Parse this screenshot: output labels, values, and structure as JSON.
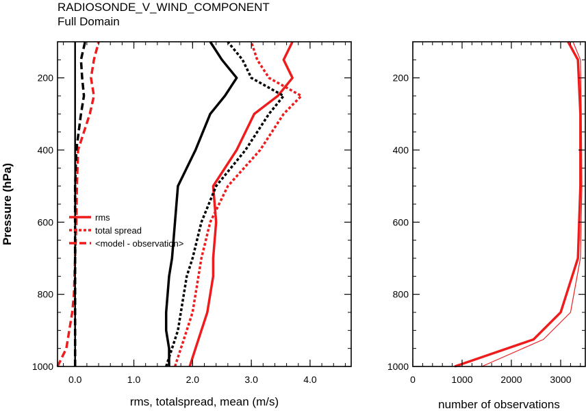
{
  "header": {
    "title": "RADIOSONDE_V_WIND_COMPONENT",
    "subtitle": "Full Domain"
  },
  "colors": {
    "red": "#ee1c1c",
    "black": "#000000"
  },
  "chart_data": [
    {
      "type": "line",
      "xlabel": "rms, totalspread, mean (m/s)",
      "ylabel": "Pressure (hPa)",
      "xlim": [
        -0.3,
        4.7
      ],
      "ylim": [
        1000,
        100
      ],
      "y_reversed": true,
      "xticks": [
        0.0,
        1.0,
        2.0,
        3.0,
        4.0
      ],
      "xtick_labels": [
        "0.0",
        "1.0",
        "2.0",
        "3.0",
        "4.0"
      ],
      "yticks": [
        200,
        400,
        600,
        800,
        1000
      ],
      "ytick_labels": [
        "200",
        "400",
        "600",
        "800",
        "1000"
      ],
      "legend": {
        "placement": "center-left",
        "entries": [
          {
            "label": "rms",
            "style": "solid",
            "color": "#ee1c1c"
          },
          {
            "label": "total spread",
            "style": "dotted",
            "color": "#ee1c1c"
          },
          {
            "label": "<model - observation>",
            "style": "dashed",
            "color": "#ee1c1c"
          }
        ]
      },
      "series": [
        {
          "color": "#ee1c1c",
          "style": "solid",
          "width": 3.5,
          "points": [
            [
              1.95,
              1000
            ],
            [
              2.05,
              950
            ],
            [
              2.15,
              900
            ],
            [
              2.25,
              850
            ],
            [
              2.35,
              750
            ],
            [
              2.35,
              700
            ],
            [
              2.4,
              600
            ],
            [
              2.35,
              500
            ],
            [
              2.75,
              400
            ],
            [
              3.05,
              300
            ],
            [
              3.45,
              250
            ],
            [
              3.7,
              200
            ],
            [
              3.55,
              150
            ],
            [
              3.7,
              100
            ]
          ]
        },
        {
          "color": "#ee1c1c",
          "style": "dotted",
          "width": 3.5,
          "points": [
            [
              1.7,
              1000
            ],
            [
              1.8,
              950
            ],
            [
              1.9,
              900
            ],
            [
              2.0,
              850
            ],
            [
              2.1,
              750
            ],
            [
              2.15,
              700
            ],
            [
              2.3,
              600
            ],
            [
              2.6,
              500
            ],
            [
              3.15,
              400
            ],
            [
              3.55,
              300
            ],
            [
              3.85,
              250
            ],
            [
              3.3,
              200
            ],
            [
              3.1,
              150
            ],
            [
              3.0,
              100
            ]
          ]
        },
        {
          "color": "#ee1c1c",
          "style": "dashed",
          "width": 3.5,
          "points": [
            [
              -0.3,
              1000
            ],
            [
              -0.15,
              950
            ],
            [
              -0.1,
              900
            ],
            [
              -0.05,
              850
            ],
            [
              -0.02,
              800
            ],
            [
              0.0,
              700
            ],
            [
              0.02,
              600
            ],
            [
              0.03,
              500
            ],
            [
              0.05,
              400
            ],
            [
              0.25,
              300
            ],
            [
              0.32,
              250
            ],
            [
              0.27,
              200
            ],
            [
              0.32,
              150
            ],
            [
              0.4,
              100
            ]
          ]
        },
        {
          "color": "#000000",
          "style": "solid",
          "width": 3.5,
          "points": [
            [
              1.6,
              1000
            ],
            [
              1.6,
              950
            ],
            [
              1.55,
              900
            ],
            [
              1.55,
              850
            ],
            [
              1.6,
              750
            ],
            [
              1.65,
              700
            ],
            [
              1.7,
              600
            ],
            [
              1.75,
              500
            ],
            [
              2.05,
              400
            ],
            [
              2.3,
              300
            ],
            [
              2.55,
              250
            ],
            [
              2.75,
              200
            ],
            [
              2.5,
              150
            ],
            [
              2.3,
              100
            ]
          ]
        },
        {
          "color": "#000000",
          "style": "dotted",
          "width": 3.5,
          "points": [
            [
              1.55,
              1000
            ],
            [
              1.65,
              950
            ],
            [
              1.75,
              900
            ],
            [
              1.8,
              850
            ],
            [
              1.9,
              750
            ],
            [
              2.0,
              700
            ],
            [
              2.15,
              600
            ],
            [
              2.4,
              500
            ],
            [
              2.9,
              400
            ],
            [
              3.3,
              300
            ],
            [
              3.55,
              250
            ],
            [
              3.0,
              200
            ],
            [
              2.85,
              150
            ],
            [
              2.6,
              100
            ]
          ]
        },
        {
          "color": "#000000",
          "style": "dashed",
          "width": 3.5,
          "points": [
            [
              0.0,
              1000
            ],
            [
              0.0,
              900
            ],
            [
              0.0,
              800
            ],
            [
              0.0,
              700
            ],
            [
              0.0,
              600
            ],
            [
              0.0,
              500
            ],
            [
              0.02,
              400
            ],
            [
              0.1,
              300
            ],
            [
              0.15,
              250
            ],
            [
              0.12,
              200
            ],
            [
              0.1,
              150
            ],
            [
              0.17,
              100
            ]
          ]
        },
        {
          "color": "#000000",
          "style": "solid",
          "width": 2.5,
          "points": [
            [
              0.0,
              1000
            ],
            [
              0.0,
              100
            ]
          ]
        }
      ]
    },
    {
      "type": "line",
      "xlabel": "number of observations",
      "xlim": [
        0,
        3500
      ],
      "ylim": [
        1000,
        100
      ],
      "y_reversed": true,
      "xticks": [
        0,
        1000,
        2000,
        3000
      ],
      "xtick_labels": [
        "0",
        "1000",
        "2000",
        "3000"
      ],
      "yticks": [
        200,
        400,
        600,
        800,
        1000
      ],
      "ytick_labels": [
        "200",
        "400",
        "600",
        "800",
        "1000"
      ],
      "series": [
        {
          "color": "#ee1c1c",
          "style": "solid",
          "width": 3.5,
          "points": [
            [
              850,
              1000
            ],
            [
              2450,
              925
            ],
            [
              3000,
              850
            ],
            [
              3350,
              700
            ],
            [
              3400,
              500
            ],
            [
              3400,
              300
            ],
            [
              3350,
              150
            ],
            [
              3150,
              100
            ]
          ]
        },
        {
          "color": "#ee1c1c",
          "style": "solid",
          "width": 1.2,
          "points": [
            [
              1400,
              1000
            ],
            [
              2650,
              925
            ],
            [
              3200,
              850
            ],
            [
              3400,
              700
            ],
            [
              3430,
              500
            ],
            [
              3420,
              300
            ],
            [
              3400,
              150
            ],
            [
              3250,
              100
            ]
          ]
        }
      ]
    }
  ]
}
